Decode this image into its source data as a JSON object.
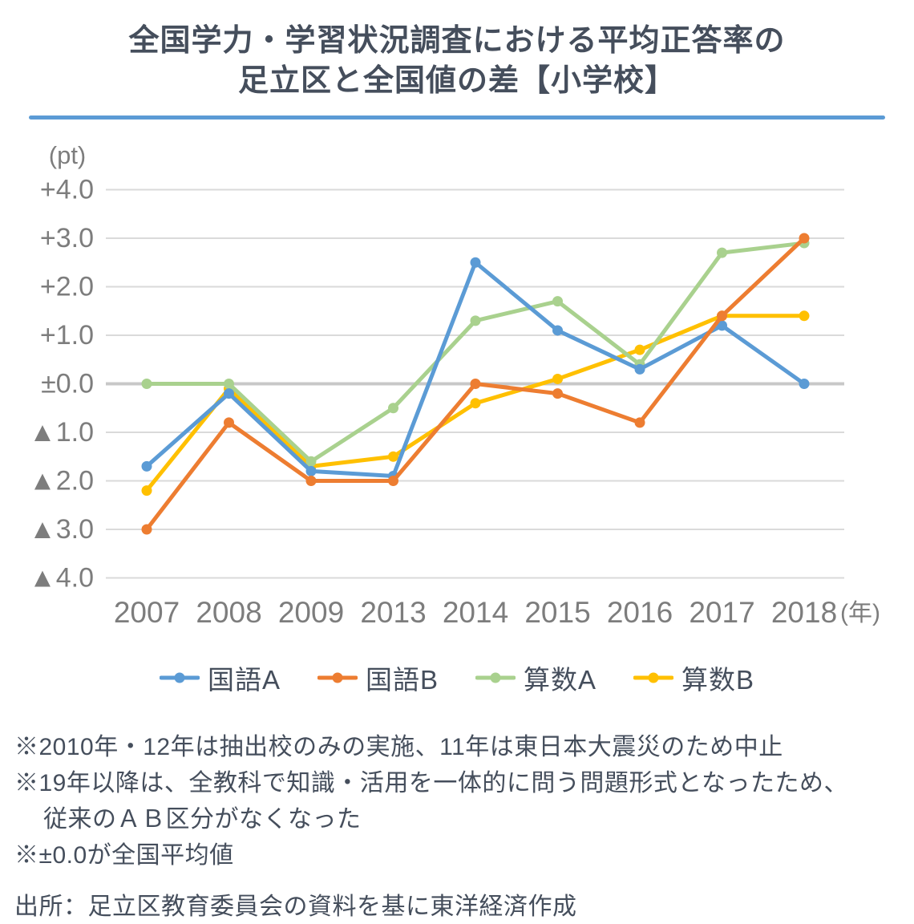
{
  "title": {
    "line1": "全国学力・学習状況調査における平均正答率の",
    "line2": "足立区と全国値の差【小学校】"
  },
  "colors": {
    "accent": "#5B9BD5",
    "title_text": "#454E5C",
    "axis_text": "#7D7D7D",
    "gridline": "#DADADA",
    "zero_line": "#C8C8C8"
  },
  "axis": {
    "unit_y": "(pt)",
    "unit_x": "(年)",
    "y_tick_labels": [
      "+4.0",
      "+3.0",
      "+2.0",
      "+1.0",
      "±0.0",
      "▲1.0",
      "▲2.0",
      "▲3.0",
      "▲4.0"
    ]
  },
  "chart_data": {
    "type": "line",
    "title": "全国学力・学習状況調査における平均正答率の足立区と全国値の差【小学校】",
    "categories": [
      "2007",
      "2008",
      "2009",
      "2013",
      "2014",
      "2015",
      "2016",
      "2017",
      "2018"
    ],
    "series": [
      {
        "name": "国語A",
        "color": "#5B9BD5",
        "values": [
          -1.7,
          -0.2,
          -1.8,
          -1.9,
          2.5,
          1.1,
          0.3,
          1.2,
          0.0
        ]
      },
      {
        "name": "国語B",
        "color": "#ED7D31",
        "values": [
          -3.0,
          -0.8,
          -2.0,
          -2.0,
          0.0,
          -0.2,
          -0.8,
          1.4,
          3.0
        ]
      },
      {
        "name": "算数A",
        "color": "#A9D18E",
        "values": [
          0.0,
          0.0,
          -1.6,
          -0.5,
          1.3,
          1.7,
          0.4,
          2.7,
          2.9
        ]
      },
      {
        "name": "算数B",
        "color": "#FFC000",
        "values": [
          -2.2,
          -0.1,
          -1.7,
          -1.5,
          -0.4,
          0.1,
          0.7,
          1.4,
          1.4
        ]
      }
    ],
    "ylim": [
      -4.0,
      4.0
    ],
    "y_tick_step": 1.0,
    "grid": true,
    "legend_position": "bottom"
  },
  "notes": [
    {
      "text": "※2010年・12年は抽出校のみの実施、11年は東日本大震災のため中止"
    },
    {
      "text": "※19年以降は、全教科で知識・活用を一体的に問う問題形式となったため、"
    },
    {
      "text": "従来のＡＢ区分がなくなった"
    },
    {
      "text": "※±0.0が全国平均値"
    }
  ],
  "source": "出所：足立区教育委員会の資料を基に東洋経済作成"
}
